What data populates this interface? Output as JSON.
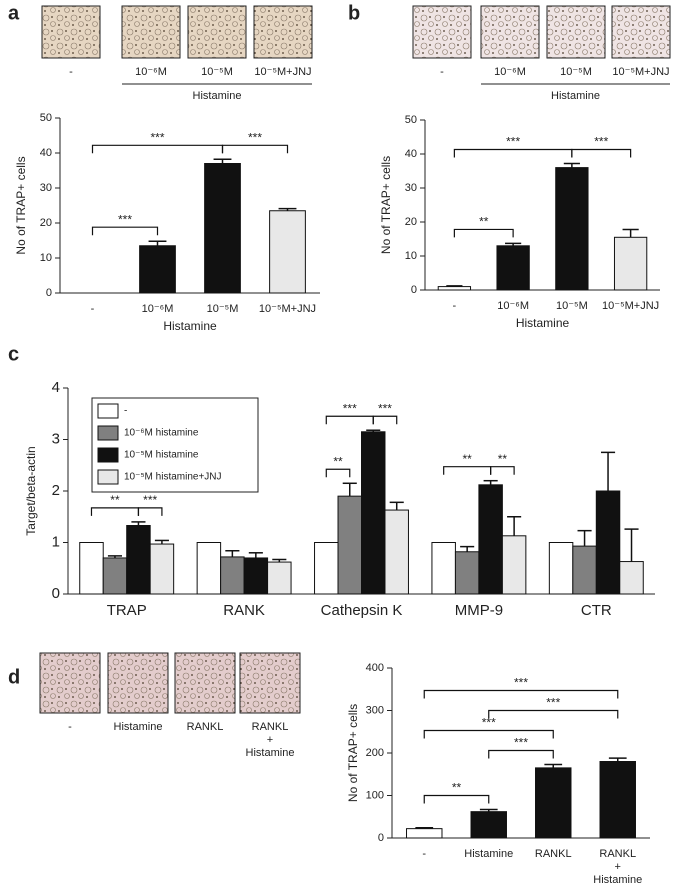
{
  "chart_data": [
    {
      "type": "bar",
      "panel_label": "a",
      "images": {
        "labels": [
          "-",
          "10⁻⁶M",
          "10⁻⁵M",
          "10⁻⁵M+JNJ"
        ],
        "group_label": "Histamine"
      },
      "y_label": "No of TRAP+ cells",
      "x_label": "Histamine",
      "categories": [
        "-",
        "10⁻⁶M",
        "10⁻⁵M",
        "10⁻⁵M+JNJ"
      ],
      "values": [
        0,
        13.5,
        37,
        23.5
      ],
      "errors": [
        0,
        1.3,
        1.2,
        0.6
      ],
      "colors": [
        "#ffffff",
        "#111111",
        "#111111",
        "#e8e8e8"
      ],
      "ylim": [
        0,
        50
      ],
      "yticks": [
        0,
        10,
        20,
        30,
        40,
        50
      ],
      "significance": [
        {
          "from": 0,
          "to": 1,
          "label": "***"
        },
        {
          "from": 0,
          "to": 2,
          "label": "***"
        },
        {
          "from": 2,
          "to": 3,
          "label": "***"
        }
      ]
    },
    {
      "type": "bar",
      "panel_label": "b",
      "images": {
        "labels": [
          "-",
          "10⁻⁶M",
          "10⁻⁵M",
          "10⁻⁵M+JNJ"
        ],
        "group_label": "Histamine"
      },
      "y_label": "No of TRAP+ cells",
      "x_label": "Histamine",
      "categories": [
        "-",
        "10⁻⁶M",
        "10⁻⁵M",
        "10⁻⁵M+JNJ"
      ],
      "values": [
        1,
        13,
        36,
        15.5
      ],
      "errors": [
        0.2,
        0.7,
        1.2,
        2.3
      ],
      "colors": [
        "#ffffff",
        "#111111",
        "#111111",
        "#e8e8e8"
      ],
      "ylim": [
        0,
        50
      ],
      "yticks": [
        0,
        10,
        20,
        30,
        40,
        50
      ],
      "significance": [
        {
          "from": 0,
          "to": 1,
          "label": "**"
        },
        {
          "from": 0,
          "to": 2,
          "label": "***"
        },
        {
          "from": 2,
          "to": 3,
          "label": "***"
        }
      ]
    },
    {
      "type": "grouped-bar",
      "panel_label": "c",
      "y_label": "Target/beta-actin",
      "categories": [
        "TRAP",
        "RANK",
        "Cathepsin K",
        "MMP-9",
        "CTR"
      ],
      "series": [
        {
          "name": "-",
          "color": "#ffffff",
          "values": [
            1,
            1,
            1,
            1,
            1
          ],
          "errors": [
            0,
            0,
            0,
            0,
            0
          ]
        },
        {
          "name": "10⁻⁶M histamine",
          "color": "#808080",
          "values": [
            0.7,
            0.72,
            1.9,
            0.82,
            0.93
          ],
          "errors": [
            0.04,
            0.12,
            0.25,
            0.1,
            0.3
          ]
        },
        {
          "name": "10⁻⁵M histamine",
          "color": "#111111",
          "values": [
            1.33,
            0.7,
            3.15,
            2.12,
            2.0
          ],
          "errors": [
            0.07,
            0.1,
            0.03,
            0.08,
            0.75
          ]
        },
        {
          "name": "10⁻⁵M histamine+JNJ",
          "color": "#e8e8e8",
          "values": [
            0.97,
            0.62,
            1.63,
            1.13,
            0.63
          ],
          "errors": [
            0.07,
            0.05,
            0.15,
            0.37,
            0.63
          ]
        }
      ],
      "ylim": [
        0,
        4
      ],
      "yticks": [
        0,
        1,
        2,
        3,
        4
      ],
      "significance": [
        {
          "category": 0,
          "from": 0,
          "to": 2,
          "label": "**"
        },
        {
          "category": 0,
          "from": 2,
          "to": 3,
          "label": "***"
        },
        {
          "category": 2,
          "from": 0,
          "to": 1,
          "label": "**"
        },
        {
          "category": 2,
          "from": 0,
          "to": 2,
          "label": "***"
        },
        {
          "category": 2,
          "from": 2,
          "to": 3,
          "label": "***"
        },
        {
          "category": 3,
          "from": 0,
          "to": 2,
          "label": "**"
        },
        {
          "category": 3,
          "from": 2,
          "to": 3,
          "label": "**"
        }
      ]
    },
    {
      "type": "bar",
      "panel_label": "d",
      "images": {
        "labels": [
          "-",
          "Histamine",
          "RANKL",
          "RANKL + Histamine"
        ]
      },
      "y_label": "No of TRAP+ cells",
      "categories": [
        "-",
        "Histamine",
        "RANKL",
        "RANKL + Histamine"
      ],
      "values": [
        22,
        62,
        165,
        180
      ],
      "errors": [
        2,
        5,
        8,
        8
      ],
      "colors": [
        "#ffffff",
        "#111111",
        "#111111",
        "#111111"
      ],
      "ylim": [
        0,
        400
      ],
      "yticks": [
        0,
        100,
        200,
        300,
        400
      ],
      "significance": [
        {
          "from": 0,
          "to": 1,
          "label": "**"
        },
        {
          "from": 1,
          "to": 2,
          "label": "***"
        },
        {
          "from": 0,
          "to": 2,
          "label": "***"
        },
        {
          "from": 1,
          "to": 3,
          "label": "***"
        },
        {
          "from": 0,
          "to": 3,
          "label": "***"
        }
      ]
    }
  ]
}
